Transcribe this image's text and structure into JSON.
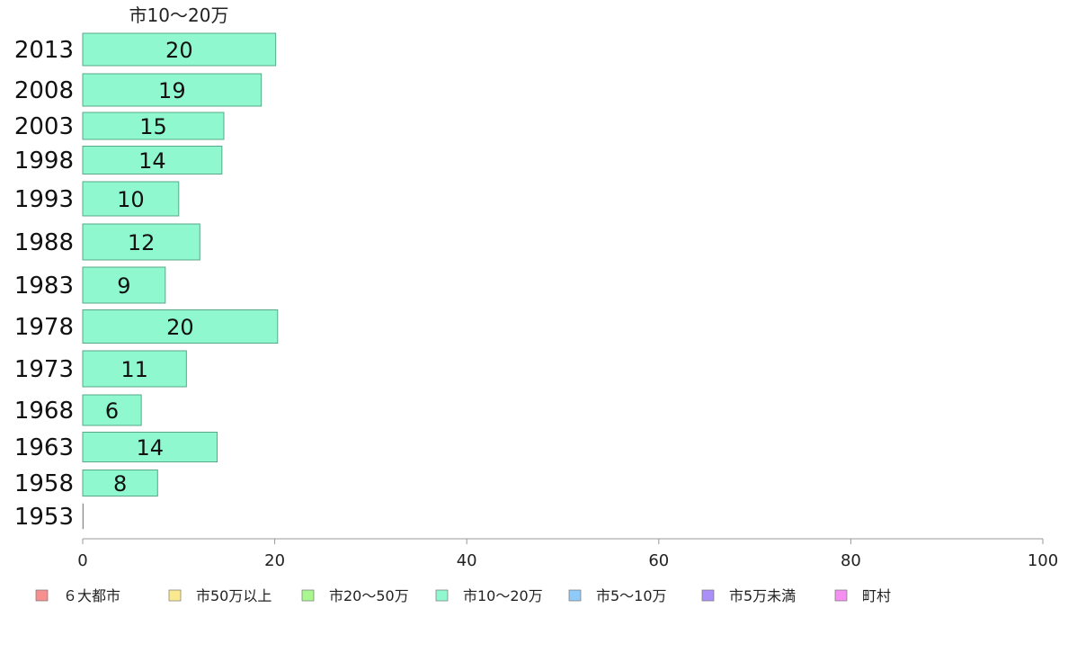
{
  "chart_data": {
    "type": "bar",
    "orientation": "horizontal",
    "series_title": "市10〜20万",
    "categories": [
      "2013",
      "2008",
      "2003",
      "1998",
      "1993",
      "1988",
      "1983",
      "1978",
      "1973",
      "1968",
      "1963",
      "1958",
      "1953"
    ],
    "series": [
      {
        "name": "市10〜20万",
        "values": [
          20,
          19,
          15,
          14,
          10,
          12,
          9,
          20,
          11,
          6,
          14,
          8,
          0
        ]
      }
    ],
    "bar_values": [
      20.1,
      18.6,
      14.7,
      14.5,
      10.0,
      12.2,
      8.6,
      20.3,
      10.8,
      6.1,
      14.0,
      7.8,
      0
    ],
    "xlim": [
      0,
      100
    ],
    "xticks": [
      0,
      20,
      40,
      60,
      80,
      100
    ],
    "xtick_labels": [
      "0",
      "20",
      "40",
      "60",
      "80",
      "100"
    ],
    "title": "",
    "xlabel": "",
    "ylabel": "",
    "grid": false,
    "legend_position": "bottom",
    "legend": [
      {
        "label": "６大都市",
        "color": "#f78f8f"
      },
      {
        "label": "市50万以上",
        "color": "#fbe98f"
      },
      {
        "label": "市20〜50万",
        "color": "#a9f88f"
      },
      {
        "label": "市10〜20万",
        "color": "#8ff8cf"
      },
      {
        "label": "市5〜10万",
        "color": "#8fcaf8"
      },
      {
        "label": "市5万未満",
        "color": "#ab8ff8"
      },
      {
        "label": "町村",
        "color": "#f58ff0"
      }
    ],
    "bar_color": "#8ff8cf"
  }
}
